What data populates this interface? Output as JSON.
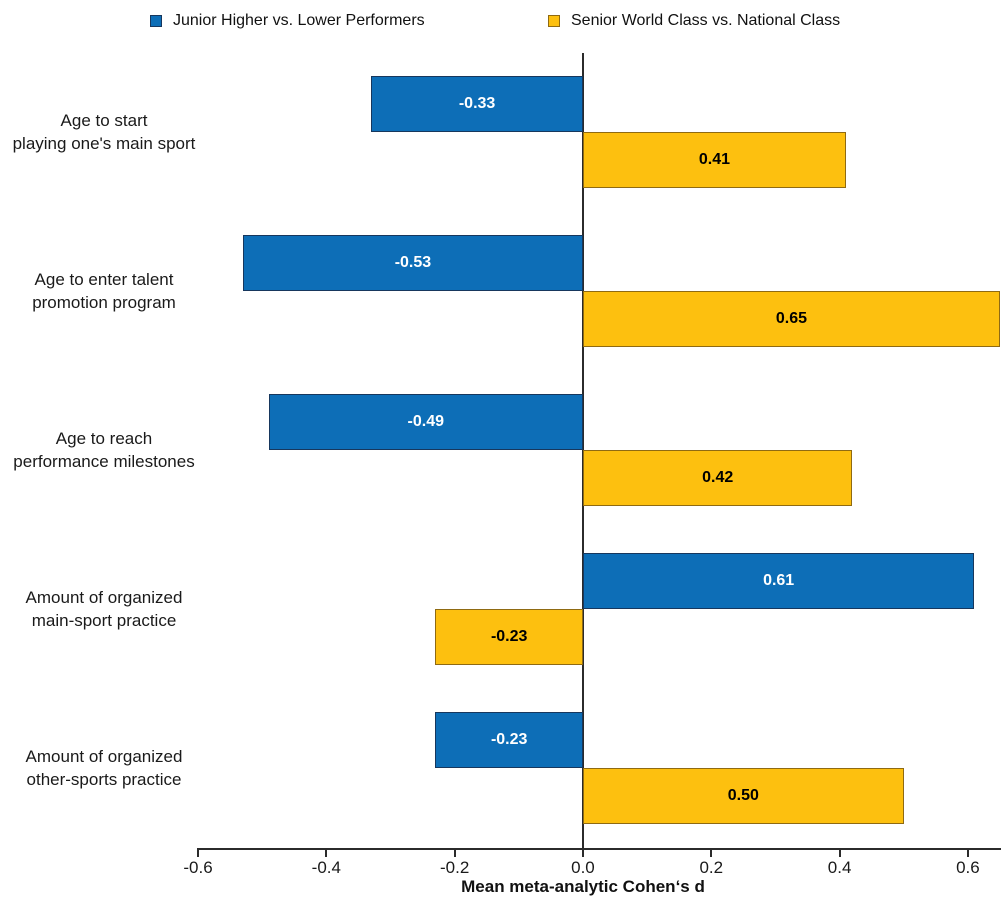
{
  "colors": {
    "series1_fill": "#0d6eb7",
    "series1_border": "#17375d",
    "series1_text": "#ffffff",
    "series2_fill": "#fdc00f",
    "series2_border": "#8f6a12",
    "series2_text": "#000000",
    "axis": "#2b2b2b"
  },
  "legend": {
    "items": [
      {
        "label": "Junior Higher vs. Lower Performers",
        "color": "#0d6eb7",
        "border": "#17375d"
      },
      {
        "label": "Senior World Class vs. National Class",
        "color": "#fdc00f",
        "border": "#8f6a12"
      }
    ]
  },
  "chart_data": {
    "type": "bar",
    "orientation": "horizontal",
    "categories": [
      [
        "Age to start",
        "playing one's main sport"
      ],
      [
        "Age to enter talent",
        "promotion program"
      ],
      [
        "Age to reach",
        "performance milestones"
      ],
      [
        "Amount of organized",
        "main-sport practice"
      ],
      [
        "Amount of organized",
        "other-sports practice"
      ]
    ],
    "series": [
      {
        "name": "Junior Higher vs. Lower Performers",
        "values": [
          -0.33,
          -0.53,
          -0.49,
          0.61,
          -0.23
        ]
      },
      {
        "name": "Senior World Class vs. National Class",
        "values": [
          0.41,
          0.65,
          0.42,
          -0.23,
          0.5
        ]
      }
    ],
    "xlabel": "Mean meta-analytic Cohen‘s d",
    "xlim": [
      -0.6,
      0.65
    ],
    "xticks": [
      {
        "value": -0.6,
        "label": "-0.6"
      },
      {
        "value": -0.4,
        "label": "-0.4"
      },
      {
        "value": -0.2,
        "label": "-0.2"
      },
      {
        "value": 0.0,
        "label": "0.0"
      },
      {
        "value": 0.2,
        "label": "0.2"
      },
      {
        "value": 0.4,
        "label": "0.4"
      },
      {
        "value": 0.6,
        "label": "0.6"
      }
    ],
    "grid": false,
    "legend_position": "top"
  }
}
